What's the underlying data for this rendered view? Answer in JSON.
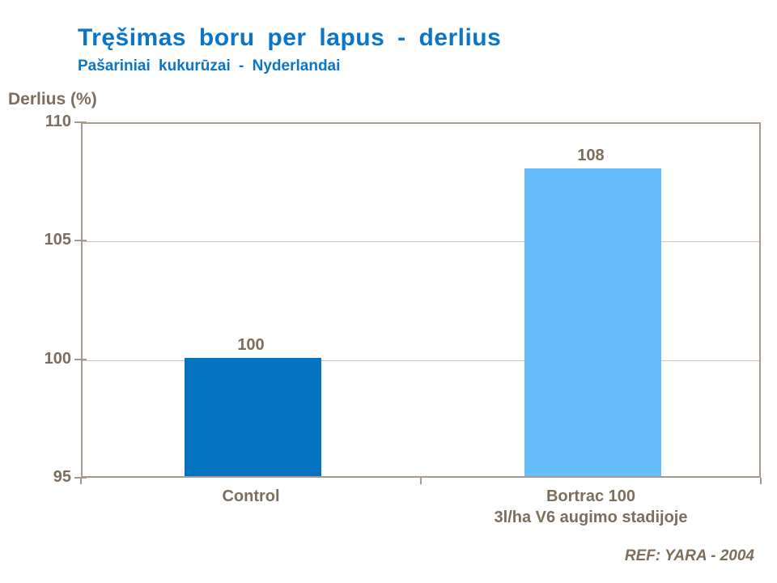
{
  "header": {
    "title": "Tręšimas boru per lapus - derlius",
    "subtitle": "Pašariniai kukurūzai - Nyderlandai"
  },
  "footer": {
    "reference": "REF: YARA - 2004"
  },
  "chart_data": {
    "type": "bar",
    "title": "Tręšimas boru per lapus - derlius",
    "subtitle": "Pašariniai kukurūzai - Nyderlandai",
    "ylabel": "Derlius (%)",
    "xlabel": "",
    "categories": [
      "Control",
      "Bortrac 100\n3l/ha V6 augimo stadijoje"
    ],
    "values": [
      100,
      108
    ],
    "data_labels": [
      "100",
      "108"
    ],
    "bar_colors": [
      "#0473bf",
      "#66bdfa"
    ],
    "ylim": [
      95,
      110
    ],
    "yticks": [
      95,
      100,
      105,
      110
    ],
    "grid": true,
    "legend": "none"
  },
  "colors": {
    "title_blue": "#0b75c9",
    "text_brown": "#7d6e5b",
    "axis_frame": "#a59a8d",
    "gridline": "#cdc5ba",
    "background": "#ffffff"
  }
}
